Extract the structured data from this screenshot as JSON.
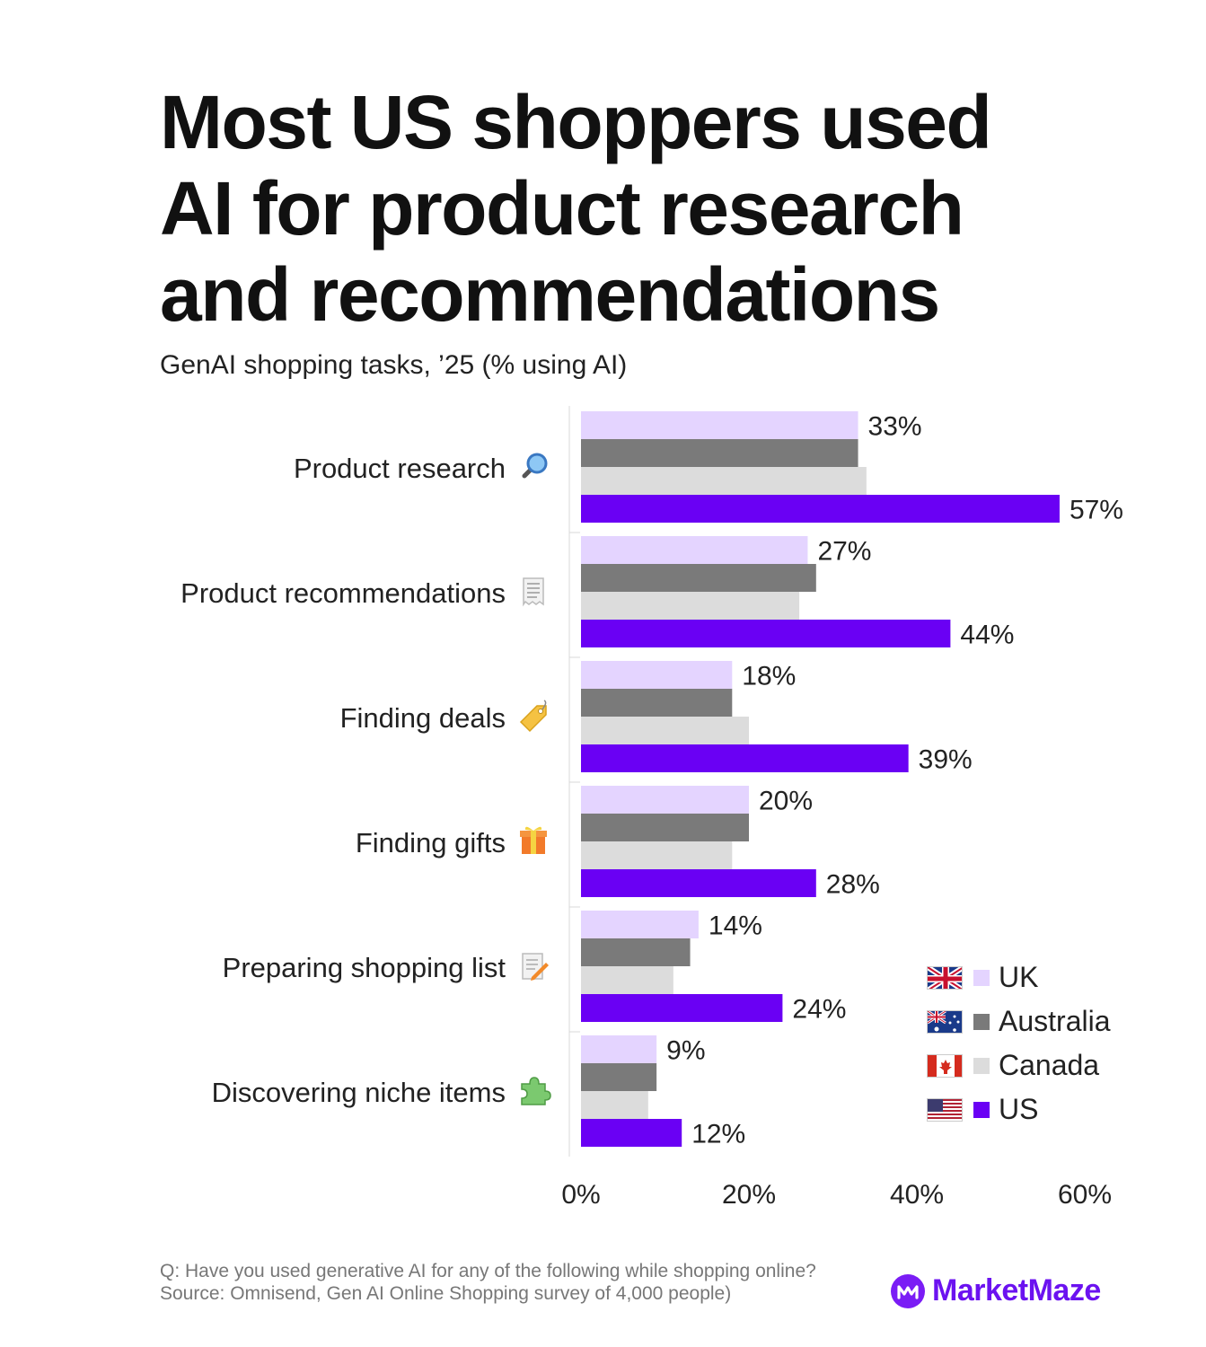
{
  "title_lines": [
    "Most US shoppers used",
    "AI for product research",
    "and recommendations"
  ],
  "subtitle": "GenAI shopping tasks, ’25 (% using AI)",
  "chart_data": {
    "type": "bar",
    "orientation": "horizontal",
    "categories": [
      "Product research",
      "Product recommendations",
      "Finding deals",
      "Finding gifts",
      "Preparing shopping list",
      "Discovering niche items"
    ],
    "category_icons": [
      "magnifying-glass-icon",
      "receipt-icon",
      "price-tag-icon",
      "gift-icon",
      "memo-icon",
      "puzzle-piece-icon"
    ],
    "series": [
      {
        "name": "UK",
        "color": "#e4d4ff",
        "values": [
          33,
          27,
          18,
          20,
          14,
          9
        ]
      },
      {
        "name": "Australia",
        "color": "#7a7a7a",
        "values": [
          33,
          28,
          18,
          20,
          13,
          9
        ]
      },
      {
        "name": "Canada",
        "color": "#dcdcdc",
        "values": [
          34,
          26,
          20,
          18,
          11,
          8
        ]
      },
      {
        "name": "US",
        "color": "#6a00f4",
        "values": [
          57,
          44,
          39,
          28,
          24,
          12
        ]
      }
    ],
    "data_labels": [
      {
        "series": "UK",
        "values": [
          "33%",
          "27%",
          "18%",
          "20%",
          "14%",
          "9%"
        ]
      },
      {
        "series": "US",
        "values": [
          "57%",
          "44%",
          "39%",
          "28%",
          "24%",
          "12%"
        ]
      }
    ],
    "xlim": [
      0,
      60
    ],
    "x_ticks": [
      "0%",
      "20%",
      "40%",
      "60%"
    ],
    "grid": false,
    "legend_position": "bottom-right"
  },
  "legend": [
    {
      "label": "UK",
      "flag": "uk-flag-icon",
      "color": "#e4d4ff"
    },
    {
      "label": "Australia",
      "flag": "australia-flag-icon",
      "color": "#7a7a7a"
    },
    {
      "label": "Canada",
      "flag": "canada-flag-icon",
      "color": "#dcdcdc"
    },
    {
      "label": "US",
      "flag": "us-flag-icon",
      "color": "#6a00f4"
    }
  ],
  "footer": {
    "question": "Q: Have you used generative AI for any of the following while shopping online?",
    "source": "Source: Omnisend, Gen AI Online Shopping survey of 4,000 people)"
  },
  "brand": {
    "name": "MarketMaze",
    "color": "#6b12f0"
  }
}
